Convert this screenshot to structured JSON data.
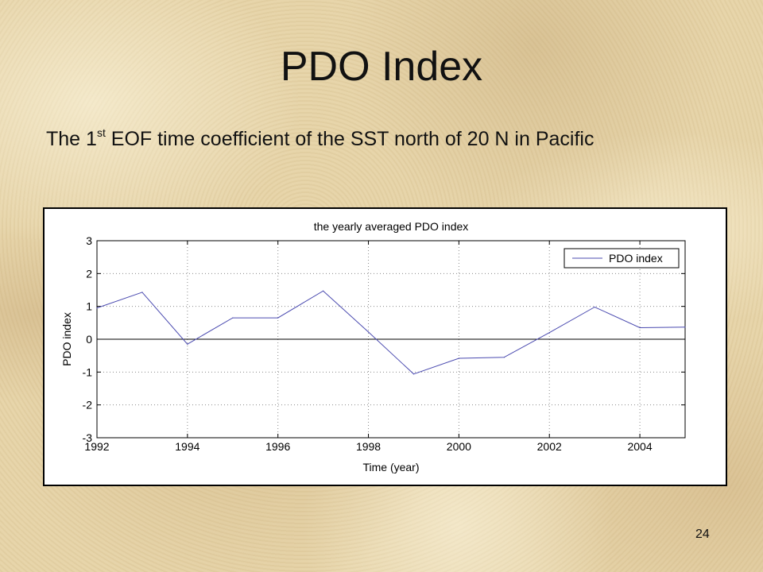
{
  "slide": {
    "title": "PDO Index",
    "subtitle_pre": "The 1",
    "subtitle_sup": "st",
    "subtitle_post": " EOF time coefficient of the SST north of 20 N in Pacific",
    "page_number": "24"
  },
  "colors": {
    "line": "#4b4bb0",
    "axis": "#000000",
    "grid": "#8a8a8a"
  },
  "chart_data": {
    "type": "line",
    "title": "the yearly averaged PDO index",
    "xlabel": "Time (year)",
    "ylabel": "PDO index",
    "xlim": [
      1992,
      2005
    ],
    "ylim": [
      -3,
      3
    ],
    "xticks": [
      1992,
      1994,
      1996,
      1998,
      2000,
      2002,
      2004
    ],
    "yticks": [
      3,
      2,
      1,
      0,
      -1,
      -2,
      -3
    ],
    "grid": true,
    "legend_position": "top-right",
    "series": [
      {
        "name": "PDO index",
        "x": [
          1992,
          1993,
          1994,
          1995,
          1996,
          1997,
          1998,
          1999,
          2000,
          2001,
          2002,
          2003,
          2004,
          2005
        ],
        "y": [
          0.95,
          1.43,
          -0.15,
          0.65,
          0.65,
          1.47,
          0.22,
          -1.06,
          -0.58,
          -0.55,
          0.2,
          0.98,
          0.35,
          0.37
        ]
      }
    ]
  }
}
